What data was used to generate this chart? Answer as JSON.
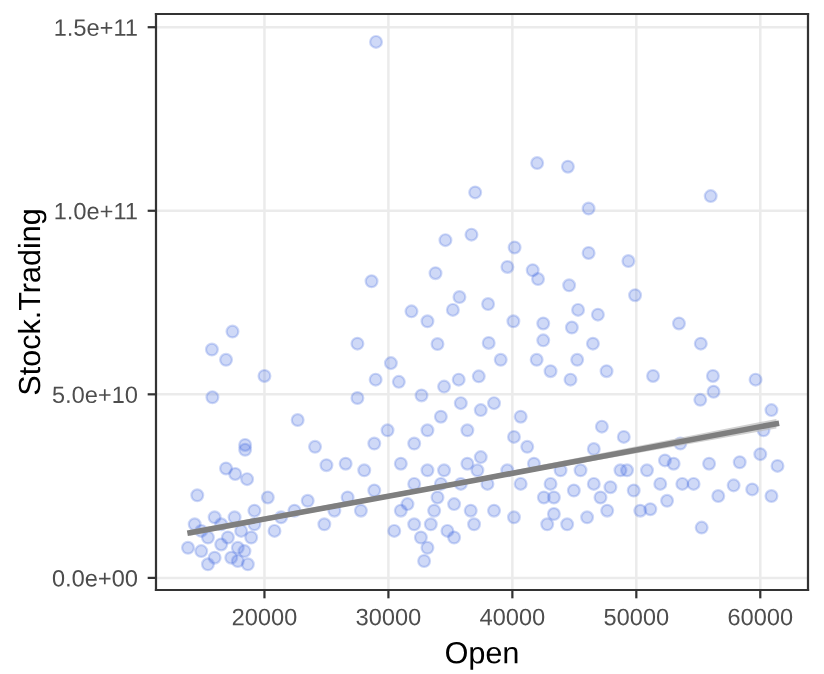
{
  "chart_data": {
    "type": "scatter",
    "xlabel": "Open",
    "ylabel": "Stock.Trading",
    "xlim": [
      11250,
      63850
    ],
    "ylim": [
      -3300000000.0,
      153600000000.0
    ],
    "xticks": [
      20000,
      30000,
      40000,
      50000,
      60000
    ],
    "yticks": [
      {
        "value": 0,
        "label": "0.0e+00"
      },
      {
        "value": 50000000000.0,
        "label": "5.0e+10"
      },
      {
        "value": 100000000000.0,
        "label": "1.0e+11"
      },
      {
        "value": 150000000000.0,
        "label": "1.5e+11"
      }
    ],
    "grid": true,
    "series": [
      {
        "marker": "circle",
        "color": "#4169e1",
        "x": [
          29000,
          42000,
          44480,
          37000,
          56000,
          46150,
          34600,
          36700,
          40180,
          46150,
          49360,
          39600,
          41640,
          42070,
          28640,
          33800,
          44580,
          49900,
          35730,
          38040,
          31860,
          35200,
          45300,
          46900,
          33150,
          40080,
          53440,
          44800,
          42490,
          42490,
          46500,
          55200,
          27500,
          33960,
          38090,
          15760,
          17420,
          16900,
          15800,
          20000,
          22680,
          16900,
          18440,
          18440,
          17640,
          18600,
          14580,
          24080,
          25000,
          26550,
          27500,
          28970,
          30200,
          30840,
          32670,
          34490,
          35670,
          37290,
          39060,
          41960,
          43080,
          44690,
          45230,
          47600,
          51350,
          55160,
          56230,
          56180,
          59620,
          60900,
          60260,
          61390,
          60900,
          59350,
          57850,
          56610,
          55270,
          53710,
          52480,
          51130,
          60000,
          58340,
          55870,
          52310,
          53550,
          48990,
          46570,
          47220,
          49250,
          47910,
          46030,
          44420,
          43350,
          42540,
          43080,
          43890,
          41740,
          41200,
          40130,
          40670,
          38520,
          37450,
          36370,
          35840,
          34230,
          33150,
          32080,
          31000,
          29930,
          28860,
          28050,
          28860,
          27780,
          26710,
          25640,
          24830,
          23490,
          22420,
          21340,
          20270,
          20810,
          19190,
          14900,
          14900,
          15440,
          15980,
          16510,
          16510,
          17050,
          17320,
          17850,
          18120,
          18390,
          18930,
          19190,
          17590,
          15980,
          14370,
          13830,
          15440,
          17850,
          18660,
          31540,
          32080,
          32620,
          32880,
          33150,
          33420,
          33690,
          33960,
          34230,
          34490,
          34760,
          35300,
          35840,
          36370,
          36640,
          37180,
          37450,
          37990,
          31000,
          30470,
          32080,
          33150,
          35300,
          36910,
          38520,
          39590,
          40670,
          40130,
          42810,
          43350,
          44960,
          45500,
          46570,
          47110,
          47650,
          48720,
          49790,
          50320,
          50860,
          51930,
          53010,
          54620
        ],
        "values": [
          146000000000.0,
          113000000000.0,
          112000000000.0,
          105000000000.0,
          104000000000.0,
          100600000000.0,
          92000000000.0,
          93500000000.0,
          90000000000.0,
          88500000000.0,
          86300000000.0,
          84700000000.0,
          83800000000.0,
          81400000000.0,
          80800000000.0,
          83000000000.0,
          79700000000.0,
          77000000000.0,
          76500000000.0,
          74600000000.0,
          72600000000.0,
          73000000000.0,
          73000000000.0,
          71700000000.0,
          69900000000.0,
          69900000000.0,
          69300000000.0,
          68200000000.0,
          69300000000.0,
          64700000000.0,
          63800000000.0,
          63800000000.0,
          63800000000.0,
          63700000000.0,
          64000000000.0,
          62200000000.0,
          67100000000.0,
          59400000000.0,
          49200000000.0,
          55000000000.0,
          43000000000.0,
          29800000000.0,
          34900000000.0,
          36200000000.0,
          28300000000.0,
          26900000000.0,
          22500000000.0,
          35700000000.0,
          30700000000.0,
          31100000000.0,
          49000000000.0,
          54000000000.0,
          58500000000.0,
          53400000000.0,
          49700000000.0,
          52100000000.0,
          54000000000.0,
          54900000000.0,
          59400000000.0,
          59400000000.0,
          56300000000.0,
          54000000000.0,
          59400000000.0,
          56300000000.0,
          55000000000.0,
          48500000000.0,
          50700000000.0,
          55000000000.0,
          54000000000.0,
          45700000000.0,
          40200000000.0,
          30500000000.0,
          22300000000.0,
          24100000000.0,
          25200000000.0,
          22300000000.0,
          13700000000.0,
          25600000000.0,
          21000000000.0,
          18700000000.0,
          33700000000.0,
          31500000000.0,
          31100000000.0,
          32000000000.0,
          36600000000.0,
          38400000000.0,
          35100000000.0,
          41200000000.0,
          29300000000.0,
          24700000000.0,
          16500000000.0,
          14600000000.0,
          17400000000.0,
          21900000000.0,
          25600000000.0,
          29300000000.0,
          31100000000.0,
          35700000000.0,
          38400000000.0,
          43900000000.0,
          47600000000.0,
          45700000000.0,
          40200000000.0,
          47600000000.0,
          43900000000.0,
          40200000000.0,
          36600000000.0,
          31100000000.0,
          40200000000.0,
          36600000000.0,
          29300000000.0,
          23800000000.0,
          18300000000.0,
          21900000000.0,
          18300000000.0,
          14600000000.0,
          21000000000.0,
          18300000000.0,
          16500000000.0,
          21900000000.0,
          12800000000.0,
          14600000000.0,
          12800000000.0,
          7300000000.0,
          11000000000.0,
          5500000000.0,
          9100000000.0,
          14600000000.0,
          11000000000.0,
          5500000000.0,
          8200000000.0,
          12800000000.0,
          7300000000.0,
          11000000000.0,
          18300000000.0,
          16500000000.0,
          16500000000.0,
          14600000000.0,
          8200000000.0,
          3700000000.0,
          4600000000.0,
          3700000000.0,
          20100000000.0,
          14600000000.0,
          11000000000.0,
          4600000000.0,
          8200000000.0,
          14600000000.0,
          18300000000.0,
          21900000000.0,
          25600000000.0,
          29300000000.0,
          12800000000.0,
          20100000000.0,
          25600000000.0,
          31100000000.0,
          18300000000.0,
          29300000000.0,
          32900000000.0,
          25600000000.0,
          18300000000.0,
          12800000000.0,
          25600000000.0,
          29300000000.0,
          11000000000.0,
          14600000000.0,
          18300000000.0,
          29300000000.0,
          25600000000.0,
          16500000000.0,
          14600000000.0,
          21900000000.0,
          23800000000.0,
          29300000000.0,
          25600000000.0,
          21900000000.0,
          18300000000.0,
          29300000000.0,
          23800000000.0,
          18300000000.0,
          29300000000.0,
          25600000000.0,
          31100000000.0,
          25600000000.0
        ]
      },
      {
        "type": "line",
        "marker": "none",
        "color": "#7f7f7f",
        "x": [
          14000,
          37000,
          61300
        ],
        "values": [
          12300000000.0,
          26600000000.0,
          42000000000.0
        ],
        "lower": [
          11500000000.0,
          26200000000.0,
          40700000000.0
        ],
        "upper": [
          13100000000.0,
          27200000000.0,
          43300000000.0
        ]
      }
    ]
  }
}
